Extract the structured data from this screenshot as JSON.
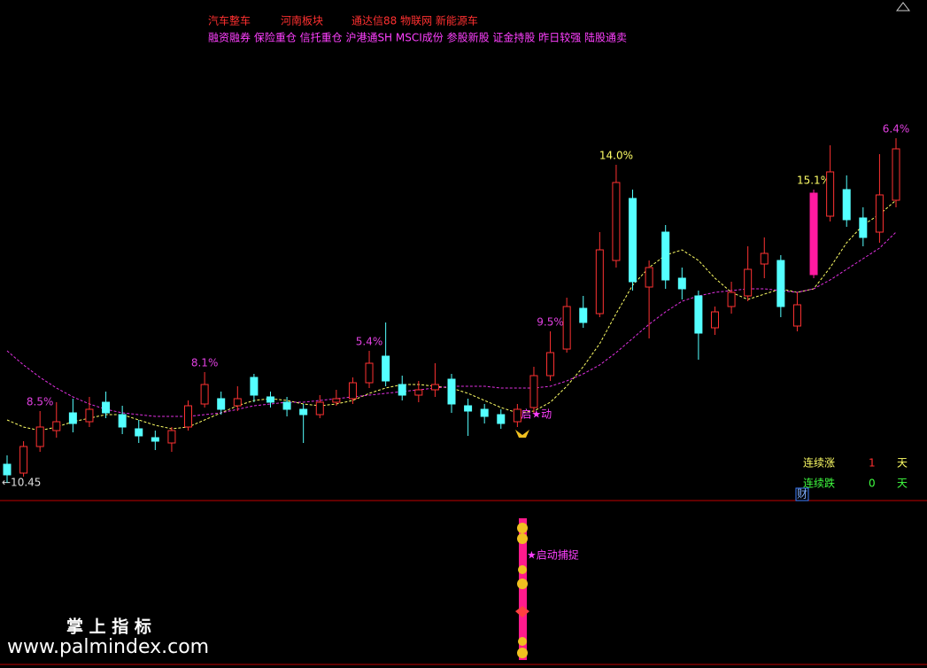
{
  "chart_data": {
    "type": "candlestick",
    "header": {
      "sectors": [
        "汽车整车",
        "河南板块",
        "通达信88 物联网 新能源车"
      ],
      "concepts": "融资融券 保险重仓 信托重仓 沪港通SH MSCI成份 参股新股 证金持股 昨日较强 陆股通卖"
    },
    "ylim": [
      9.45,
      37.7
    ],
    "up_color": "#ff3232",
    "down_color": "#54ffff",
    "highlight_color": "#ff1aa0",
    "highlight_index": 49,
    "candles": [
      [
        11.5,
        10.9,
        10.45,
        12.0
      ],
      [
        11.0,
        12.5,
        10.8,
        12.8
      ],
      [
        12.5,
        13.6,
        12.2,
        14.5
      ],
      [
        13.4,
        13.9,
        13.0,
        15.0
      ],
      [
        14.4,
        13.8,
        13.3,
        15.2
      ],
      [
        13.9,
        14.6,
        13.6,
        15.3
      ],
      [
        15.0,
        14.4,
        14.1,
        15.6
      ],
      [
        14.3,
        13.6,
        13.2,
        14.8
      ],
      [
        13.5,
        13.1,
        12.7,
        14.0
      ],
      [
        13.0,
        12.8,
        12.3,
        13.4
      ],
      [
        12.7,
        13.4,
        12.2,
        13.6
      ],
      [
        13.6,
        14.8,
        13.4,
        15.1
      ],
      [
        14.9,
        16.0,
        14.7,
        16.7
      ],
      [
        15.2,
        14.6,
        14.3,
        15.6
      ],
      [
        14.8,
        15.2,
        14.5,
        15.9
      ],
      [
        16.4,
        15.4,
        15.0,
        16.6
      ],
      [
        15.3,
        15.0,
        14.7,
        15.6
      ],
      [
        15.0,
        14.6,
        14.2,
        15.3
      ],
      [
        14.6,
        14.3,
        12.7,
        14.9
      ],
      [
        14.3,
        15.0,
        14.1,
        15.4
      ],
      [
        15.0,
        15.2,
        14.8,
        15.7
      ],
      [
        15.2,
        16.1,
        14.9,
        16.4
      ],
      [
        16.1,
        17.2,
        15.8,
        17.9
      ],
      [
        17.6,
        16.2,
        15.9,
        19.5
      ],
      [
        16.0,
        15.4,
        15.1,
        16.5
      ],
      [
        15.4,
        15.7,
        15.0,
        16.2
      ],
      [
        15.7,
        16.0,
        15.3,
        17.2
      ],
      [
        16.3,
        14.9,
        14.4,
        16.6
      ],
      [
        14.8,
        14.5,
        13.1,
        15.2
      ],
      [
        14.6,
        14.2,
        13.8,
        14.9
      ],
      [
        14.3,
        13.8,
        13.5,
        14.6
      ],
      [
        13.9,
        14.6,
        13.6,
        14.9
      ],
      [
        14.7,
        16.5,
        14.4,
        17.0
      ],
      [
        16.5,
        17.8,
        16.2,
        19.0
      ],
      [
        18.0,
        20.4,
        17.8,
        20.9
      ],
      [
        20.3,
        19.5,
        19.2,
        21.0
      ],
      [
        20.0,
        23.6,
        19.8,
        24.6
      ],
      [
        23.0,
        27.4,
        22.6,
        28.4
      ],
      [
        26.5,
        21.8,
        21.3,
        27.0
      ],
      [
        21.5,
        22.6,
        18.6,
        23.0
      ],
      [
        24.6,
        21.9,
        21.4,
        25.0
      ],
      [
        22.0,
        21.4,
        20.8,
        22.6
      ],
      [
        21.0,
        18.9,
        17.4,
        21.3
      ],
      [
        19.2,
        20.1,
        18.8,
        20.4
      ],
      [
        20.4,
        21.2,
        20.0,
        21.8
      ],
      [
        21.0,
        22.5,
        20.7,
        23.8
      ],
      [
        22.8,
        23.4,
        22.0,
        24.3
      ],
      [
        23.0,
        20.4,
        19.8,
        23.3
      ],
      [
        19.3,
        20.5,
        19.0,
        21.2
      ],
      [
        22.2,
        26.8,
        22.0,
        27.0
      ],
      [
        25.5,
        28.0,
        25.2,
        29.5
      ],
      [
        27.0,
        25.3,
        24.9,
        27.8
      ],
      [
        25.4,
        24.3,
        23.8,
        26.0
      ],
      [
        24.6,
        26.7,
        24.0,
        29.0
      ],
      [
        26.4,
        29.3,
        26.0,
        29.9
      ]
    ],
    "series": [
      {
        "color": "#ffff66",
        "values": [
          14.0,
          13.6,
          13.4,
          13.6,
          13.9,
          14.1,
          14.3,
          14.3,
          14.0,
          13.7,
          13.5,
          13.6,
          14.0,
          14.4,
          14.8,
          15.1,
          15.2,
          15.1,
          14.9,
          14.8,
          14.9,
          15.1,
          15.5,
          15.8,
          16.0,
          16.0,
          15.9,
          15.8,
          15.5,
          15.1,
          14.7,
          14.4,
          14.5,
          15.0,
          15.9,
          17.0,
          18.3,
          20.0,
          21.6,
          22.6,
          23.3,
          23.6,
          23.0,
          22.0,
          21.2,
          20.8,
          21.1,
          21.4,
          21.2,
          21.4,
          22.6,
          24.0,
          25.0,
          25.6,
          26.4
        ]
      },
      {
        "color": "#e030e0",
        "values": [
          17.9,
          17.1,
          16.4,
          15.8,
          15.3,
          14.9,
          14.6,
          14.4,
          14.3,
          14.2,
          14.2,
          14.2,
          14.3,
          14.4,
          14.6,
          14.8,
          14.9,
          15.0,
          15.0,
          15.1,
          15.2,
          15.3,
          15.4,
          15.5,
          15.6,
          15.7,
          15.8,
          15.9,
          15.9,
          15.9,
          15.8,
          15.8,
          15.8,
          15.9,
          16.2,
          16.6,
          17.1,
          17.8,
          18.6,
          19.4,
          20.1,
          20.7,
          21.0,
          21.2,
          21.3,
          21.4,
          21.4,
          21.3,
          21.2,
          21.4,
          21.9,
          22.5,
          23.1,
          23.7,
          24.6
        ]
      }
    ],
    "peak_labels": [
      null,
      null,
      {
        "text": "8.5%",
        "color": "#e040e0"
      },
      null,
      null,
      null,
      null,
      null,
      null,
      null,
      null,
      null,
      {
        "text": "8.1%",
        "color": "#e040e0"
      },
      null,
      null,
      null,
      null,
      null,
      null,
      null,
      null,
      null,
      {
        "text": "5.4%",
        "color": "#e040e0"
      },
      null,
      null,
      null,
      null,
      null,
      null,
      null,
      null,
      null,
      null,
      {
        "text": "9.5%",
        "color": "#e040e0"
      },
      null,
      null,
      null,
      {
        "text": "14.0%",
        "color": "#ffff66"
      },
      null,
      null,
      null,
      null,
      null,
      null,
      null,
      null,
      null,
      null,
      null,
      {
        "text": "15.1%",
        "color": "#ffff66"
      },
      null,
      null,
      null,
      null,
      {
        "text": "6.4%",
        "color": "#e040e0"
      }
    ],
    "low_label": "←10.45",
    "start_label": "启★动",
    "stats": {
      "up_label": "连续涨",
      "up_days": 1,
      "unit": "天",
      "down_label": "连续跌",
      "down_days": 0,
      "badge": "财"
    },
    "signal_label": "★启动捕捉",
    "watermark": {
      "title": "掌 上 指 标",
      "url": "www.palmindex.com"
    }
  }
}
